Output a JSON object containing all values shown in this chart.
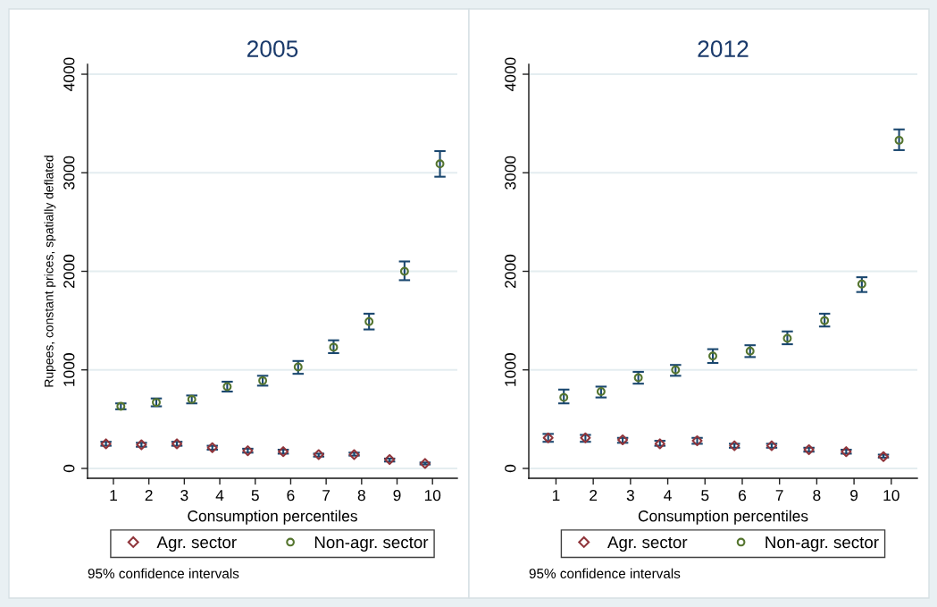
{
  "chart_data": [
    {
      "type": "scatter",
      "title": "2005",
      "xlabel": "Consumption percentiles",
      "ylabel": "Rupees, constant prices, spatially deflated",
      "categories": [
        "1",
        "2",
        "3",
        "4",
        "5",
        "6",
        "7",
        "8",
        "9",
        "10"
      ],
      "series": [
        {
          "name": "Agr. sector",
          "color": "#90353b",
          "marker": "diamond",
          "values": [
            250,
            240,
            250,
            210,
            180,
            170,
            140,
            140,
            90,
            50
          ],
          "errors": [
            [
              230,
              270
            ],
            [
              220,
              260
            ],
            [
              230,
              270
            ],
            [
              190,
              230
            ],
            [
              160,
              200
            ],
            [
              150,
              190
            ],
            [
              120,
              150
            ],
            [
              130,
              160
            ],
            [
              70,
              100
            ],
            [
              40,
              60
            ]
          ]
        },
        {
          "name": "Non-agr. sector",
          "color": "#55752f",
          "marker": "circle",
          "values": [
            630,
            670,
            700,
            830,
            890,
            1030,
            1230,
            1490,
            2000,
            3090
          ],
          "errors": [
            [
              600,
              660
            ],
            [
              630,
              710
            ],
            [
              660,
              740
            ],
            [
              780,
              880
            ],
            [
              840,
              940
            ],
            [
              960,
              1090
            ],
            [
              1170,
              1300
            ],
            [
              1410,
              1570
            ],
            [
              1910,
              2100
            ],
            [
              2960,
              3220
            ]
          ]
        }
      ],
      "ylim": [
        -100,
        4100
      ],
      "yticks": [
        0,
        1000,
        2000,
        3000,
        4000
      ],
      "grid": "y",
      "legend": "bottom",
      "annotations": [
        "95% confidence intervals"
      ]
    },
    {
      "type": "scatter",
      "title": "2012",
      "xlabel": "Consumption percentiles",
      "categories": [
        "1",
        "2",
        "3",
        "4",
        "5",
        "6",
        "7",
        "8",
        "9",
        "10"
      ],
      "series": [
        {
          "name": "Agr. sector",
          "color": "#90353b",
          "marker": "diamond",
          "values": [
            310,
            310,
            290,
            250,
            280,
            230,
            230,
            190,
            170,
            120
          ],
          "errors": [
            [
              270,
              350
            ],
            [
              270,
              340
            ],
            [
              260,
              310
            ],
            [
              230,
              280
            ],
            [
              250,
              310
            ],
            [
              210,
              250
            ],
            [
              210,
              250
            ],
            [
              170,
              210
            ],
            [
              150,
              190
            ],
            [
              110,
              140
            ]
          ]
        },
        {
          "name": "Non-agr. sector",
          "color": "#55752f",
          "marker": "circle",
          "values": [
            720,
            780,
            920,
            1000,
            1140,
            1190,
            1320,
            1500,
            1870,
            3330
          ],
          "errors": [
            [
              660,
              800
            ],
            [
              720,
              830
            ],
            [
              860,
              980
            ],
            [
              940,
              1050
            ],
            [
              1070,
              1210
            ],
            [
              1130,
              1250
            ],
            [
              1260,
              1390
            ],
            [
              1440,
              1570
            ],
            [
              1790,
              1940
            ],
            [
              3230,
              3440
            ]
          ]
        }
      ],
      "ylim": [
        -100,
        4100
      ],
      "yticks": [
        0,
        1000,
        2000,
        3000,
        4000
      ],
      "grid": "y",
      "legend": "bottom",
      "annotations": [
        "95% confidence intervals"
      ]
    }
  ]
}
